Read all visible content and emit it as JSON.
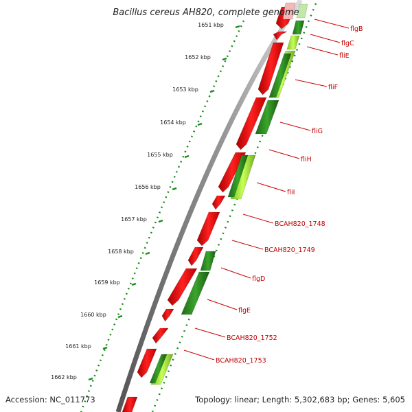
{
  "title": "Bacillus cereus AH820, complete genome",
  "accession": "Accession: NC_011773",
  "topology": "Topology: linear; Length: 5,302,683 bp; Genes: 5,605",
  "kbp_ticks": [
    "1651 kbp",
    "1652 kbp",
    "1653 kbp",
    "1654 kbp",
    "1655 kbp",
    "1656 kbp",
    "1657 kbp",
    "1658 kbp",
    "1659 kbp",
    "1660 kbp",
    "1661 kbp",
    "1662 kbp"
  ],
  "gene_labels": [
    "flgB",
    "flgC",
    "fliE",
    "fliF",
    "fliG",
    "fliH",
    "fliI",
    "BCAH820_1748",
    "BCAH820_1749",
    "flgD",
    "flgE",
    "BCAH820_1752",
    "BCAH820_1753"
  ],
  "colors": {
    "cds_red": "#ee1111",
    "gene_green": "#2e8b22",
    "gene_light_green": "#99e633",
    "backbone": "#888888",
    "label_red": "#cc0000",
    "dotted_green": "#1a8a1a"
  }
}
